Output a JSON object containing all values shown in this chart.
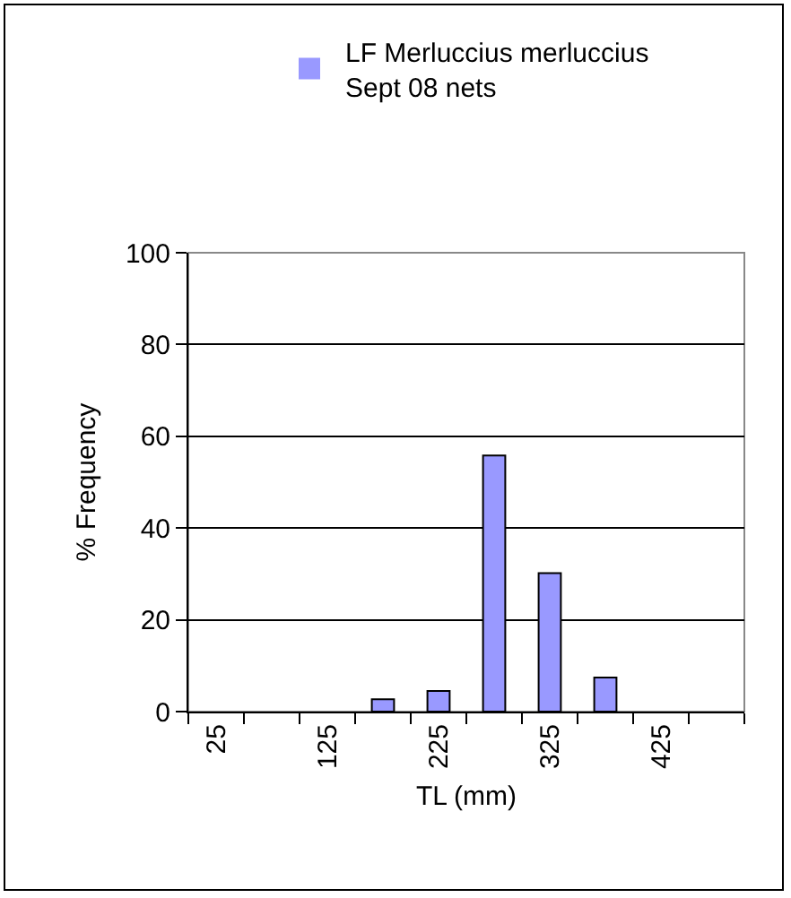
{
  "chart_data": {
    "type": "bar",
    "xlabel": "TL (mm)",
    "ylabel": "% Frequency",
    "categories": [
      "25",
      null,
      "125",
      null,
      "225",
      null,
      "325",
      null,
      "425",
      null
    ],
    "series": [
      {
        "name": "LF Merluccius merluccius\nSept 08 nets",
        "color": "#9999ff",
        "values": [
          0,
          0,
          0,
          2.7,
          4.5,
          55.8,
          30.2,
          7.4,
          0,
          0
        ]
      }
    ],
    "ylim": [
      0,
      100
    ],
    "yticks": [
      0,
      20,
      40,
      60,
      80,
      100
    ],
    "grid": "y",
    "legend": "top"
  }
}
